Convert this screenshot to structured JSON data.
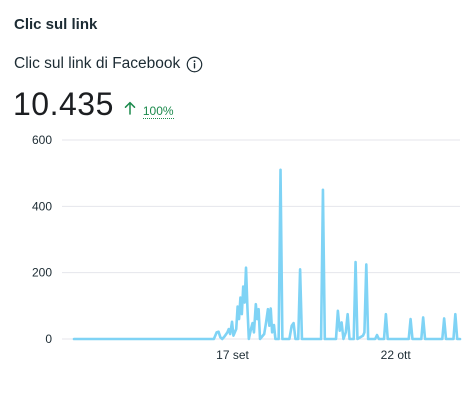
{
  "card": {
    "title": "Clic sul link",
    "metric_label": "Clic sul link di Facebook",
    "total_value": "10.435",
    "change": "100%"
  },
  "colors": {
    "line": "#7fd3f5",
    "positive_change": "#1b8a4c",
    "gridline": "#e4e6eb"
  },
  "icons": {
    "info": "info-circle-icon",
    "change": "arrow-up-icon"
  },
  "chart_data": {
    "type": "line",
    "title": "",
    "xlabel": "",
    "ylabel": "",
    "ylim": [
      0,
      600
    ],
    "y_ticks": [
      0,
      200,
      400,
      600
    ],
    "x_tick_labels": [
      {
        "label": "17 set",
        "day": 34
      },
      {
        "label": "22 ott",
        "day": 69
      }
    ],
    "grid": "horizontal",
    "series": [
      {
        "values": [
          [
            0,
            0
          ],
          [
            30.0,
            0
          ],
          [
            30.6,
            20
          ],
          [
            31.0,
            22
          ],
          [
            31.4,
            5
          ],
          [
            31.8,
            0
          ],
          [
            32.3,
            8
          ],
          [
            32.9,
            20
          ],
          [
            33.2,
            30
          ],
          [
            33.5,
            15
          ],
          [
            33.9,
            52
          ],
          [
            34.2,
            10
          ],
          [
            34.8,
            30
          ],
          [
            35.1,
            98
          ],
          [
            35.4,
            60
          ],
          [
            35.7,
            125
          ],
          [
            36.0,
            75
          ],
          [
            36.3,
            158
          ],
          [
            36.6,
            110
          ],
          [
            36.9,
            215
          ],
          [
            37.2,
            95
          ],
          [
            37.5,
            0
          ],
          [
            38.0,
            32
          ],
          [
            38.3,
            48
          ],
          [
            38.6,
            20
          ],
          [
            39.0,
            105
          ],
          [
            39.3,
            60
          ],
          [
            39.6,
            90
          ],
          [
            39.9,
            0
          ],
          [
            40.8,
            15
          ],
          [
            41.2,
            50
          ],
          [
            41.6,
            90
          ],
          [
            41.9,
            40
          ],
          [
            42.2,
            92
          ],
          [
            42.5,
            20
          ],
          [
            42.9,
            42
          ],
          [
            43.2,
            0
          ],
          [
            43.9,
            0
          ],
          [
            44.3,
            510
          ],
          [
            44.7,
            0
          ],
          [
            46.2,
            0
          ],
          [
            46.7,
            40
          ],
          [
            47.1,
            48
          ],
          [
            47.5,
            0
          ],
          [
            48.1,
            0
          ],
          [
            48.5,
            210
          ],
          [
            48.9,
            0
          ],
          [
            53.0,
            0
          ],
          [
            53.4,
            450
          ],
          [
            53.8,
            0
          ],
          [
            56.2,
            0
          ],
          [
            56.6,
            85
          ],
          [
            57.0,
            25
          ],
          [
            57.4,
            50
          ],
          [
            57.8,
            0
          ],
          [
            58.3,
            20
          ],
          [
            58.7,
            75
          ],
          [
            59.1,
            0
          ],
          [
            60.0,
            0
          ],
          [
            60.4,
            232
          ],
          [
            60.8,
            0
          ],
          [
            62.0,
            10
          ],
          [
            62.3,
            20
          ],
          [
            62.7,
            225
          ],
          [
            63.1,
            0
          ],
          [
            64.6,
            0
          ],
          [
            65.0,
            12
          ],
          [
            65.4,
            0
          ],
          [
            66.5,
            0
          ],
          [
            66.9,
            75
          ],
          [
            67.3,
            0
          ],
          [
            71.8,
            0
          ],
          [
            72.2,
            60
          ],
          [
            72.6,
            0
          ],
          [
            74.5,
            0
          ],
          [
            74.9,
            65
          ],
          [
            75.3,
            0
          ],
          [
            79.0,
            0
          ],
          [
            79.4,
            62
          ],
          [
            79.8,
            0
          ],
          [
            81.4,
            0
          ],
          [
            81.8,
            75
          ],
          [
            82.2,
            0
          ],
          [
            82.8,
            0
          ]
        ]
      }
    ]
  }
}
